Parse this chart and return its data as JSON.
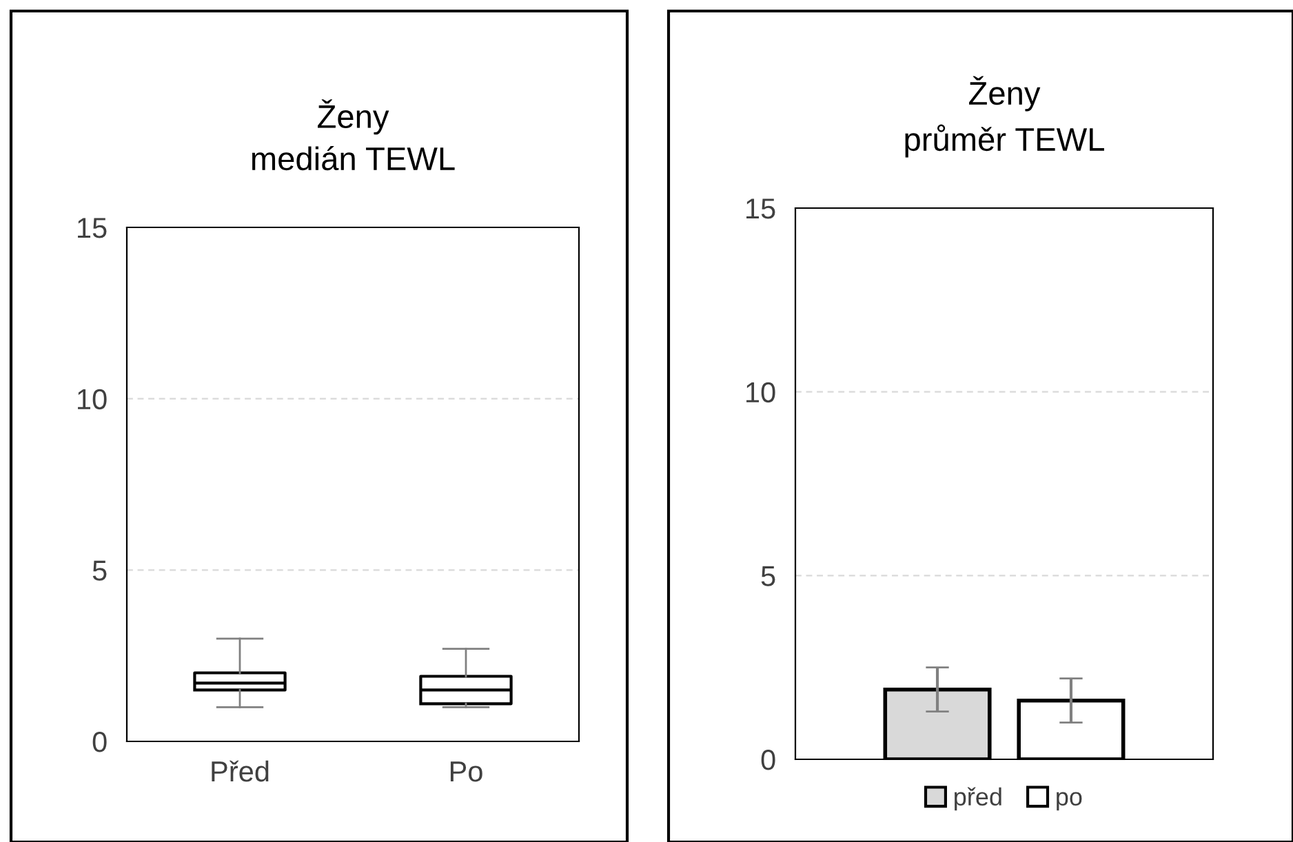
{
  "chart_data": [
    {
      "type": "box",
      "title": "Ženy\nmedián TEWL",
      "categories": [
        "Před",
        "Po"
      ],
      "boxes": [
        {
          "low": 1.0,
          "q1": 1.5,
          "median": 1.7,
          "q3": 2.0,
          "high": 3.0
        },
        {
          "low": 1.0,
          "q1": 1.1,
          "median": 1.5,
          "q3": 1.9,
          "high": 2.7
        }
      ],
      "ylim": [
        0,
        15
      ],
      "yticks": [
        0,
        5,
        10,
        15
      ],
      "grid": "y"
    },
    {
      "type": "bar",
      "title": "Ženy\nprůměr TEWL",
      "categories": [
        null
      ],
      "series": [
        {
          "name": "před",
          "color": "#d9d9d9",
          "values": [
            1.9
          ],
          "errors": [
            0.6
          ]
        },
        {
          "name": "po",
          "color": "#ffffff",
          "values": [
            1.6
          ],
          "errors": [
            0.6
          ]
        }
      ],
      "ylim": [
        0,
        15
      ],
      "yticks": [
        0,
        5,
        10,
        15
      ],
      "grid": "y",
      "legend": "bottom"
    }
  ]
}
